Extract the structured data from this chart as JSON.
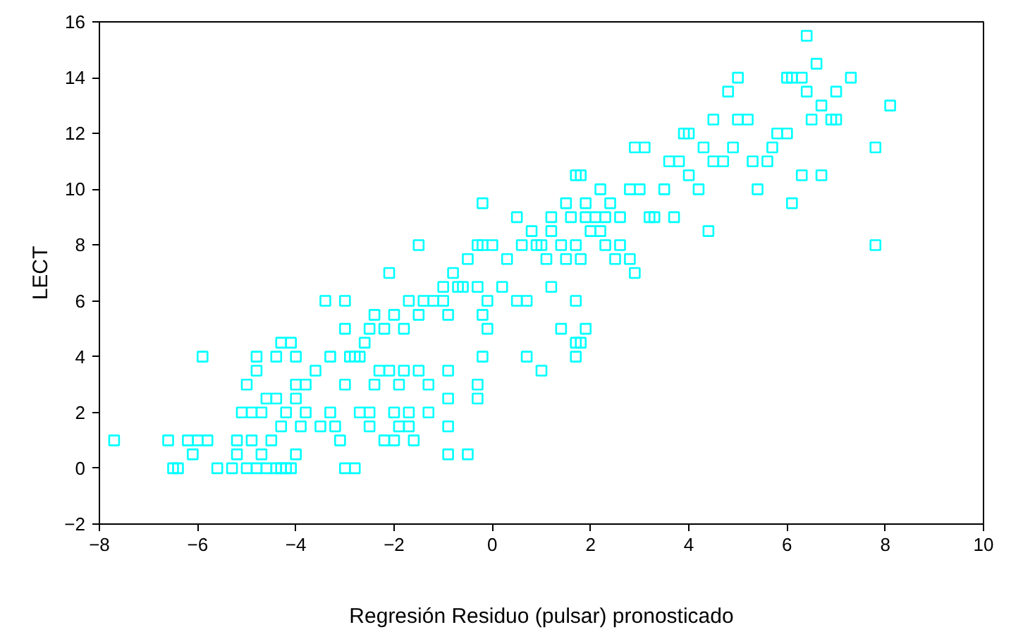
{
  "chart_data": {
    "type": "scatter",
    "xlabel": "Regresión Residuo (pulsar) pronosticado",
    "ylabel": "LECT",
    "marker": "square",
    "grid": false,
    "xlim": [
      -8,
      10
    ],
    "ylim": [
      -2,
      16
    ],
    "xticks": [
      -8,
      -6,
      -4,
      -2,
      0,
      2,
      4,
      6,
      8,
      10
    ],
    "yticks": [
      -2,
      0,
      2,
      4,
      6,
      8,
      10,
      12,
      14,
      16
    ],
    "series": [
      {
        "color": "#00ffff",
        "x": [
          -7.7,
          -6.6,
          -6.5,
          -6.4,
          -6.2,
          -6.1,
          -6.0,
          -5.8,
          -5.6,
          -5.3,
          -5.2,
          -5.2,
          -5.0,
          -4.9,
          -4.8,
          -4.7,
          -4.6,
          -4.5,
          -4.4,
          -4.3,
          -4.2,
          -4.1,
          -4.0,
          -4.3,
          -3.9,
          -3.5,
          -3.2,
          -3.1,
          -3.0,
          -2.8,
          -2.5,
          -2.2,
          -2.0,
          -1.9,
          -1.7,
          -1.6,
          -0.9,
          -0.5,
          -5.0,
          -4.9,
          -4.7,
          -4.6,
          -4.4,
          -4.2,
          -4.0,
          -3.8,
          -3.3,
          -2.7,
          -2.5,
          -2.0,
          -1.7,
          -1.3,
          -0.9,
          -5.9,
          -5.1,
          -4.8,
          -4.8,
          -4.4,
          -4.3,
          -4.1,
          -4.0,
          -4.0,
          -3.8,
          -3.6,
          -3.3,
          -3.0,
          -2.9,
          -2.7,
          -2.6,
          -2.4,
          -2.3,
          -2.1,
          -1.9,
          -1.8,
          -1.5,
          -1.3,
          -0.9,
          -0.9,
          -0.3,
          -0.3,
          -0.2,
          -0.1,
          0.7,
          1.0,
          1.7,
          1.7,
          1.8,
          1.9,
          -3.4,
          -3.0,
          -3.0,
          -2.8,
          -2.5,
          -2.4,
          -2.2,
          -2.0,
          -1.8,
          -1.7,
          -1.5,
          -1.4,
          -1.2,
          -1.0,
          -0.9,
          -0.8,
          -0.6,
          -0.3,
          -0.2,
          -0.1,
          0.2,
          0.5,
          0.7,
          1.1,
          1.2,
          1.4,
          1.7,
          -2.1,
          -1.5,
          -1.0,
          -0.7,
          -0.5,
          -0.3,
          -0.2,
          -0.2,
          0.0,
          0.3,
          0.5,
          0.6,
          0.8,
          0.9,
          1.0,
          1.2,
          1.4,
          1.5,
          1.6,
          1.7,
          1.8,
          1.9,
          2.0,
          2.1,
          2.2,
          2.3,
          2.3,
          2.5,
          2.6,
          2.8,
          2.9,
          3.2,
          1.2,
          1.5,
          1.7,
          1.8,
          1.9,
          2.2,
          2.4,
          2.6,
          2.8,
          2.9,
          3.0,
          3.1,
          3.3,
          3.6,
          3.7,
          3.8,
          3.9,
          4.0,
          4.0,
          4.2,
          4.4,
          4.5,
          4.7,
          4.8,
          4.9,
          5.0,
          5.0,
          5.2,
          5.3,
          5.4,
          5.6,
          5.8,
          6.0,
          6.1,
          6.1,
          6.3,
          6.4,
          6.4,
          6.6,
          6.7,
          6.7,
          6.9,
          7.0,
          7.0,
          7.3,
          7.8,
          7.8,
          8.1,
          6.0,
          6.3,
          6.5,
          5.7,
          4.5,
          4.3,
          3.5
        ],
        "values": [
          1,
          1,
          0,
          0,
          1,
          0.5,
          1,
          1,
          0,
          0,
          1,
          0.5,
          0,
          1,
          0,
          0.5,
          0,
          1,
          0,
          0,
          0,
          0,
          0.5,
          1.5,
          1.5,
          1.5,
          1.5,
          1,
          0,
          0,
          1.5,
          1,
          1,
          1.5,
          1.5,
          1,
          0.5,
          0.5,
          3,
          2,
          2,
          2.5,
          2.5,
          2,
          2.5,
          2,
          2,
          2,
          2,
          2,
          2,
          2,
          1.5,
          4,
          2,
          3.5,
          4,
          4,
          4.5,
          4.5,
          4,
          3,
          3,
          3.5,
          4,
          3,
          4,
          4,
          4.5,
          3,
          3.5,
          3.5,
          3,
          3.5,
          3.5,
          3,
          3.5,
          2.5,
          3,
          2.5,
          4,
          5,
          4,
          3.5,
          4,
          4.5,
          4.5,
          5,
          6,
          6,
          5,
          4,
          5,
          5.5,
          5,
          5.5,
          5,
          6,
          5.5,
          6,
          6,
          6.5,
          5.5,
          7,
          6.5,
          6.5,
          5.5,
          6,
          6.5,
          6,
          6,
          7.5,
          6.5,
          5,
          6,
          7,
          8,
          6,
          6.5,
          7.5,
          8,
          9.5,
          8,
          8,
          7.5,
          9,
          8,
          8.5,
          8,
          8,
          8.5,
          8,
          7.5,
          9,
          8,
          7.5,
          9,
          8.5,
          9,
          8.5,
          9,
          8,
          7.5,
          8,
          7.5,
          7,
          9,
          9,
          9.5,
          10.5,
          10.5,
          9.5,
          10,
          9.5,
          9,
          10,
          11.5,
          10,
          11.5,
          9,
          11,
          9,
          11,
          12,
          12,
          10.5,
          10,
          8.5,
          11,
          11,
          13.5,
          11.5,
          12.5,
          14,
          12.5,
          11,
          10,
          11,
          12,
          12,
          9.5,
          14,
          10.5,
          13.5,
          15.5,
          14.5,
          13,
          10.5,
          12.5,
          13.5,
          12.5,
          14,
          8,
          11.5,
          13,
          14,
          14,
          12.5,
          11.5,
          12.5,
          11.5,
          10
        ]
      }
    ]
  }
}
